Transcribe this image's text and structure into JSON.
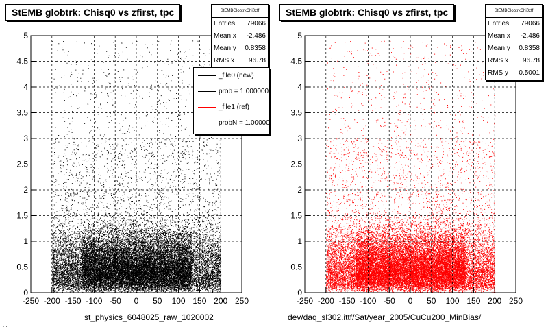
{
  "colors": {
    "reference": "#ff0000",
    "new": "#000000"
  },
  "footnote": "...",
  "legend": {
    "entries": [
      {
        "label": "_file0 (new)",
        "color": "#000000"
      },
      {
        "label": "prob = 1.000000",
        "color": "#000000"
      },
      {
        "label": "_file1 (ref)",
        "color": "#ff0000"
      },
      {
        "label": "probN = 1.000000",
        "color": "#ff0000"
      }
    ]
  },
  "chart_data": [
    {
      "type": "scatter",
      "title": "StEMB globtrk: Chisq0 vs zfirst, tpc",
      "xlabel": "st_physics_6048025_raw_1020002",
      "ylabel": "",
      "xlim": [
        -250,
        250
      ],
      "ylim": [
        0,
        5
      ],
      "xticks": [
        "-250",
        "-200",
        "-150",
        "-100",
        "-50",
        "0",
        "50",
        "100",
        "150",
        "200",
        "250"
      ],
      "yticks": [
        "0",
        "0.5",
        "1",
        "1.5",
        "2",
        "2.5",
        "3",
        "3.5",
        "4",
        "4.5",
        "5"
      ],
      "grid": true,
      "series": [
        {
          "name": "_file0 (new)",
          "color": "#000000"
        }
      ],
      "stats": {
        "header": "StEMBGlobtrkChi0zff",
        "rows": [
          {
            "label": "Entries",
            "value": "79066"
          },
          {
            "label": "Mean x",
            "value": "-2.486"
          },
          {
            "label": "Mean y",
            "value": "0.8358"
          },
          {
            "label": "RMS x",
            "value": "96.78"
          }
        ]
      }
    },
    {
      "type": "scatter",
      "title": "StEMB globtrk: Chisq0 vs zfirst, tpc",
      "xlabel": "dev/daq_sl302.ittf/Sat/year_2005/CuCu200_MinBias/",
      "ylabel": "",
      "xlim": [
        -250,
        250
      ],
      "ylim": [
        0,
        5
      ],
      "xticks": [
        "-250",
        "-200",
        "-150",
        "-100",
        "-50",
        "0",
        "50",
        "100",
        "150",
        "200",
        "250"
      ],
      "yticks": [
        "0",
        "0.5",
        "1",
        "1.5",
        "2",
        "2.5",
        "3",
        "3.5",
        "4",
        "4.5",
        "5"
      ],
      "grid": true,
      "series": [
        {
          "name": "_file1 (ref)",
          "color": "#ff0000"
        }
      ],
      "stats": {
        "header": "StEMBGlobtrkChi0zff",
        "rows": [
          {
            "label": "Entries",
            "value": "79066"
          },
          {
            "label": "Mean x",
            "value": "-2.486"
          },
          {
            "label": "Mean y",
            "value": "0.8358"
          },
          {
            "label": "RMS x",
            "value": "96.78"
          },
          {
            "label": "RMS y",
            "value": "0.5001"
          }
        ]
      }
    }
  ]
}
